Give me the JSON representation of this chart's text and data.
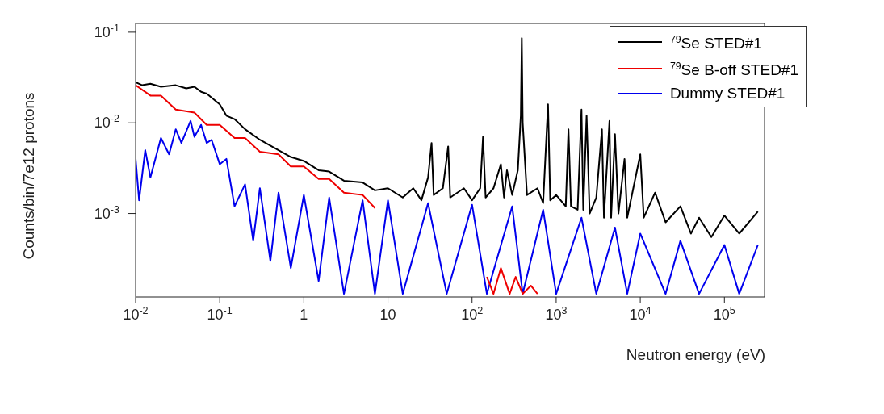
{
  "chart_data": {
    "type": "line",
    "xlabel": "Neutron energy (eV)",
    "ylabel": "Counts/bin/7e12 protons",
    "log": "xy",
    "legend": "top right",
    "marker": "none",
    "line_style": "solid",
    "xlim": [
      0.01,
      300000
    ],
    "ylim": [
      0.00012,
      0.125
    ],
    "xticks": [
      {
        "value": 0.01,
        "label": "10$^{-2}$"
      },
      {
        "value": 0.1,
        "label": "10$^{-1}$"
      },
      1,
      10,
      {
        "value": 100,
        "label": "10$^{2}$"
      },
      {
        "value": 1000,
        "label": "10$^{3}$"
      },
      {
        "value": 10000,
        "label": "10$^{4}$"
      },
      {
        "value": 100000,
        "label": "10$^{5}$"
      }
    ],
    "yticks": [
      {
        "value": 0.001,
        "label": "10$^{-3}$"
      },
      {
        "value": 0.01,
        "label": "10$^{-2}$"
      },
      {
        "value": 0.1,
        "label": "10$^{-1}$"
      }
    ],
    "series": [
      {
        "name": "Dummy STED#1",
        "color": "#0000ee",
        "x": [
          0.01,
          0.011,
          0.013,
          0.015,
          0.02,
          0.025,
          0.03,
          0.035,
          0.045,
          0.05,
          0.06,
          0.07,
          0.08,
          0.1,
          0.12,
          0.15,
          0.2,
          0.25,
          0.3,
          0.4,
          0.5,
          0.7,
          1,
          1.5,
          2,
          3,
          5,
          7,
          10,
          15,
          30,
          50,
          100,
          150,
          300,
          400,
          700,
          1000,
          2000,
          3000,
          5000,
          7000,
          10000,
          20000,
          30000,
          50000,
          100000,
          150000,
          250000
        ],
        "values": [
          0.004,
          0.0014,
          0.005,
          0.0025,
          0.0068,
          0.0045,
          0.0085,
          0.006,
          0.0105,
          0.007,
          0.0095,
          0.006,
          0.0065,
          0.0035,
          0.004,
          0.0012,
          0.0021,
          0.0005,
          0.0019,
          0.0003,
          0.0017,
          0.00025,
          0.0016,
          0.00018,
          0.0015,
          0.00013,
          0.0014,
          0.00013,
          0.0014,
          0.00013,
          0.0013,
          0.00013,
          0.00125,
          0.00013,
          0.0012,
          0.00013,
          0.0011,
          0.00013,
          0.0009,
          0.00013,
          0.0007,
          0.00013,
          0.0006,
          0.00013,
          0.0005,
          0.00013,
          0.00045,
          0.00013,
          0.00045
        ]
      },
      {
        "name": "$^{79}$Se STED#1",
        "color": "#000000",
        "x": [
          0.01,
          0.012,
          0.015,
          0.02,
          0.03,
          0.04,
          0.05,
          0.06,
          0.07,
          0.1,
          0.12,
          0.15,
          0.2,
          0.3,
          0.5,
          0.7,
          1,
          1.5,
          2,
          3,
          5,
          7,
          10,
          15,
          20,
          25,
          30,
          33,
          35,
          45,
          52,
          55,
          80,
          100,
          125,
          135,
          145,
          180,
          220,
          240,
          260,
          300,
          350,
          380,
          390,
          400,
          450,
          600,
          700,
          800,
          850,
          1000,
          1300,
          1400,
          1500,
          1800,
          2000,
          2100,
          2300,
          2500,
          3000,
          3500,
          3700,
          4300,
          4500,
          5000,
          5500,
          6500,
          7000,
          10000,
          11000,
          15000,
          20000,
          30000,
          40000,
          50000,
          70000,
          100000,
          150000,
          250000
        ],
        "values": [
          0.028,
          0.026,
          0.027,
          0.025,
          0.026,
          0.024,
          0.025,
          0.022,
          0.021,
          0.016,
          0.012,
          0.011,
          0.0085,
          0.0065,
          0.005,
          0.0042,
          0.0038,
          0.003,
          0.0029,
          0.0023,
          0.0022,
          0.0018,
          0.0019,
          0.0015,
          0.0019,
          0.0014,
          0.0025,
          0.006,
          0.0016,
          0.0019,
          0.0055,
          0.0015,
          0.0019,
          0.0014,
          0.0019,
          0.007,
          0.0015,
          0.0019,
          0.0035,
          0.0015,
          0.003,
          0.0016,
          0.003,
          0.012,
          0.086,
          0.01,
          0.0016,
          0.0019,
          0.0013,
          0.016,
          0.0014,
          0.0016,
          0.0012,
          0.0085,
          0.0012,
          0.0011,
          0.014,
          0.0011,
          0.012,
          0.001,
          0.0015,
          0.0085,
          0.0009,
          0.0105,
          0.0009,
          0.0075,
          0.001,
          0.004,
          0.0009,
          0.0045,
          0.0009,
          0.0017,
          0.0008,
          0.0012,
          0.0006,
          0.0009,
          0.00055,
          0.00095,
          0.0006,
          0.00105
        ]
      },
      {
        "name": "$^{79}$Se B-off STED#1",
        "color": "#ee0000",
        "x": [
          0.01,
          0.015,
          0.02,
          0.03,
          0.05,
          0.07,
          0.1,
          0.15,
          0.2,
          0.3,
          0.5,
          0.7,
          1,
          1.5,
          2,
          3,
          5,
          7,
          10,
          150,
          180,
          220,
          280,
          330,
          400,
          500,
          600
        ],
        "values": [
          0.026,
          0.02,
          0.02,
          0.014,
          0.013,
          0.0095,
          0.0095,
          0.0068,
          0.0068,
          0.0048,
          0.0045,
          0.0033,
          0.0033,
          0.0024,
          0.0024,
          0.0017,
          0.0016,
          0.00115,
          null,
          0.0002,
          0.00013,
          0.00025,
          0.00013,
          0.0002,
          0.00013,
          0.00016,
          0.00013
        ]
      }
    ]
  }
}
